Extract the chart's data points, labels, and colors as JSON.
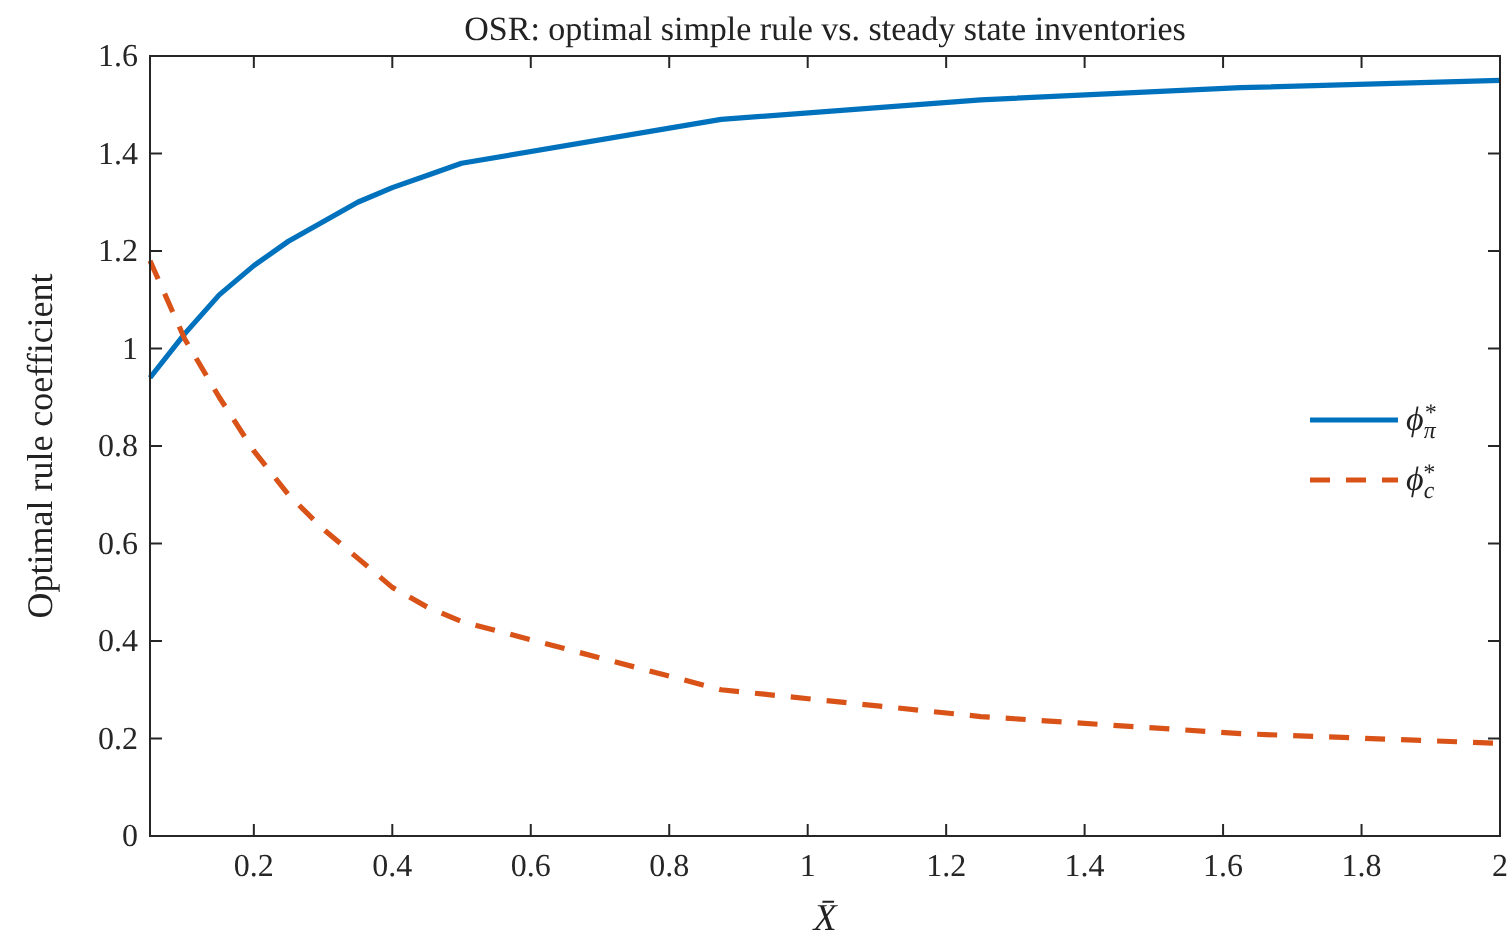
{
  "chart_data": {
    "type": "line",
    "title": "OSR: optimal simple rule vs. steady state inventories",
    "xlabel": "X̄",
    "ylabel": "Optimal rule coefficient",
    "x": [
      0.05,
      0.1,
      0.15,
      0.2,
      0.25,
      0.3,
      0.35,
      0.4,
      0.45,
      0.5,
      0.875,
      1.25,
      1.625,
      2
    ],
    "series": [
      {
        "name": "ϕ$_{π}$$^{*}$",
        "color": "#0072bd",
        "line_style": "solid",
        "values": [
          0.94,
          1.03,
          1.11,
          1.17,
          1.22,
          1.26,
          1.3,
          1.33,
          1.355,
          1.38,
          1.47,
          1.51,
          1.535,
          1.55
        ]
      },
      {
        "name": "ϕ$_{c}$$^{*}$",
        "color": "#d95319",
        "line_style": "dashed",
        "values": [
          1.18,
          1.02,
          0.9,
          0.79,
          0.7,
          0.63,
          0.57,
          0.51,
          0.47,
          0.44,
          0.3,
          0.245,
          0.21,
          0.19
        ]
      }
    ],
    "xlim": [
      0.05,
      2
    ],
    "xticks": [
      0.2,
      0.4,
      0.6,
      0.8,
      1,
      1.2,
      1.4,
      1.6,
      1.8,
      2
    ],
    "ylim": [
      0,
      1.6
    ],
    "yticks": [
      0,
      0.2,
      0.4,
      0.6,
      0.8,
      1,
      1.2,
      1.4,
      1.6
    ],
    "grid": false,
    "legend": "right",
    "marker": "none"
  }
}
